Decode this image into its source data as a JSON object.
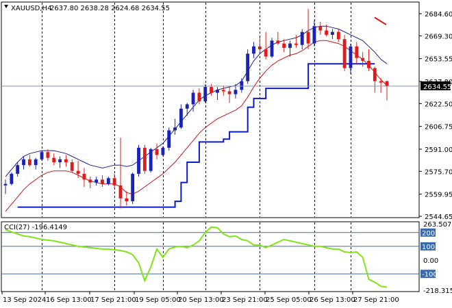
{
  "window": {
    "title": "XAUUSD,H4",
    "ohlc_text": "2637.80 2638.28 2624.68 2634.55",
    "indicator_title": "CCI(27) -196.4149",
    "current_price_tag": "2634.55"
  },
  "colors": {
    "bull": "#1a23b5",
    "bear": "#e01b1b",
    "upper_band": "#1a1a8c",
    "lower_band": "#cc1111",
    "trend_stop": "#0a1ac8",
    "cci_line": "#7fe614",
    "level_line": "#3c6aa8",
    "grid": "#000000"
  },
  "chart_data": [
    {
      "type": "candlestick",
      "title": "XAUUSD,H4",
      "ylim": [
        2544.65,
        2689.0
      ],
      "price_ticks": [
        "2684.60",
        "2669.30",
        "2653.55",
        "2637.80",
        "2622.50",
        "2606.75",
        "2591.00",
        "2575.70",
        "2559.95",
        "2544.65"
      ],
      "time_labels": [
        "13 Sep 2024",
        "16 Sep 13:00",
        "17 Sep 21:00",
        "19 Sep 05:00",
        "20 Sep 13:00",
        "23 Sep 21:00",
        "25 Sep 05:00",
        "26 Sep 13:00",
        "27 Sep 21:00"
      ],
      "candles": [
        {
          "o": 2566,
          "h": 2570,
          "l": 2560,
          "c": 2567
        },
        {
          "o": 2567,
          "h": 2575,
          "l": 2566,
          "c": 2574
        },
        {
          "o": 2574,
          "h": 2582,
          "l": 2572,
          "c": 2580
        },
        {
          "o": 2580,
          "h": 2586,
          "l": 2577,
          "c": 2584
        },
        {
          "o": 2584,
          "h": 2587,
          "l": 2579,
          "c": 2580
        },
        {
          "o": 2580,
          "h": 2585,
          "l": 2577,
          "c": 2584
        },
        {
          "o": 2584,
          "h": 2590,
          "l": 2583,
          "c": 2589
        },
        {
          "o": 2589,
          "h": 2591,
          "l": 2583,
          "c": 2585
        },
        {
          "o": 2585,
          "h": 2588,
          "l": 2580,
          "c": 2582
        },
        {
          "o": 2582,
          "h": 2586,
          "l": 2578,
          "c": 2584
        },
        {
          "o": 2584,
          "h": 2587,
          "l": 2579,
          "c": 2582
        },
        {
          "o": 2582,
          "h": 2584,
          "l": 2575,
          "c": 2576
        },
        {
          "o": 2576,
          "h": 2583,
          "l": 2571,
          "c": 2574
        },
        {
          "o": 2574,
          "h": 2578,
          "l": 2565,
          "c": 2570
        },
        {
          "o": 2570,
          "h": 2572,
          "l": 2564,
          "c": 2568
        },
        {
          "o": 2568,
          "h": 2572,
          "l": 2566,
          "c": 2570
        },
        {
          "o": 2570,
          "h": 2573,
          "l": 2565,
          "c": 2567
        },
        {
          "o": 2567,
          "h": 2572,
          "l": 2566,
          "c": 2571
        },
        {
          "o": 2571,
          "h": 2574,
          "l": 2564,
          "c": 2566
        },
        {
          "o": 2566,
          "h": 2599,
          "l": 2550,
          "c": 2557
        },
        {
          "o": 2557,
          "h": 2562,
          "l": 2552,
          "c": 2555
        },
        {
          "o": 2555,
          "h": 2575,
          "l": 2553,
          "c": 2574
        },
        {
          "o": 2574,
          "h": 2594,
          "l": 2572,
          "c": 2592
        },
        {
          "o": 2592,
          "h": 2594,
          "l": 2574,
          "c": 2576
        },
        {
          "o": 2576,
          "h": 2592,
          "l": 2575,
          "c": 2591
        },
        {
          "o": 2591,
          "h": 2595,
          "l": 2584,
          "c": 2587
        },
        {
          "o": 2587,
          "h": 2593,
          "l": 2586,
          "c": 2592
        },
        {
          "o": 2592,
          "h": 2606,
          "l": 2590,
          "c": 2604
        },
        {
          "o": 2604,
          "h": 2612,
          "l": 2601,
          "c": 2606
        },
        {
          "o": 2606,
          "h": 2622,
          "l": 2605,
          "c": 2619
        },
        {
          "o": 2619,
          "h": 2623,
          "l": 2614,
          "c": 2622
        },
        {
          "o": 2622,
          "h": 2632,
          "l": 2617,
          "c": 2630
        },
        {
          "o": 2630,
          "h": 2633,
          "l": 2622,
          "c": 2624
        },
        {
          "o": 2624,
          "h": 2636,
          "l": 2623,
          "c": 2634
        },
        {
          "o": 2634,
          "h": 2636,
          "l": 2628,
          "c": 2630
        },
        {
          "o": 2630,
          "h": 2634,
          "l": 2625,
          "c": 2632
        },
        {
          "o": 2632,
          "h": 2635,
          "l": 2628,
          "c": 2631
        },
        {
          "o": 2631,
          "h": 2634,
          "l": 2623,
          "c": 2629
        },
        {
          "o": 2629,
          "h": 2636,
          "l": 2626,
          "c": 2632
        },
        {
          "o": 2632,
          "h": 2640,
          "l": 2630,
          "c": 2638
        },
        {
          "o": 2638,
          "h": 2660,
          "l": 2636,
          "c": 2657
        },
        {
          "o": 2657,
          "h": 2665,
          "l": 2654,
          "c": 2662
        },
        {
          "o": 2662,
          "h": 2668,
          "l": 2658,
          "c": 2660
        },
        {
          "o": 2660,
          "h": 2672,
          "l": 2653,
          "c": 2655
        },
        {
          "o": 2655,
          "h": 2668,
          "l": 2654,
          "c": 2666
        },
        {
          "o": 2666,
          "h": 2672,
          "l": 2663,
          "c": 2664
        },
        {
          "o": 2664,
          "h": 2667,
          "l": 2658,
          "c": 2661
        },
        {
          "o": 2661,
          "h": 2666,
          "l": 2655,
          "c": 2664
        },
        {
          "o": 2664,
          "h": 2670,
          "l": 2661,
          "c": 2663
        },
        {
          "o": 2663,
          "h": 2674,
          "l": 2660,
          "c": 2672
        },
        {
          "o": 2672,
          "h": 2688,
          "l": 2660,
          "c": 2664
        },
        {
          "o": 2664,
          "h": 2680,
          "l": 2662,
          "c": 2676
        },
        {
          "o": 2676,
          "h": 2679,
          "l": 2670,
          "c": 2673
        },
        {
          "o": 2673,
          "h": 2677,
          "l": 2669,
          "c": 2670
        },
        {
          "o": 2670,
          "h": 2674,
          "l": 2667,
          "c": 2672
        },
        {
          "o": 2672,
          "h": 2674,
          "l": 2665,
          "c": 2667
        },
        {
          "o": 2667,
          "h": 2670,
          "l": 2645,
          "c": 2647
        },
        {
          "o": 2647,
          "h": 2664,
          "l": 2643,
          "c": 2662
        },
        {
          "o": 2662,
          "h": 2665,
          "l": 2650,
          "c": 2654
        },
        {
          "o": 2654,
          "h": 2658,
          "l": 2648,
          "c": 2652
        },
        {
          "o": 2652,
          "h": 2660,
          "l": 2645,
          "c": 2647
        },
        {
          "o": 2647,
          "h": 2648,
          "l": 2630,
          "c": 2638
        },
        {
          "o": 2638,
          "h": 2640,
          "l": 2630,
          "c": 2637
        },
        {
          "o": 2638,
          "h": 2638.28,
          "l": 2624.68,
          "c": 2634.55
        }
      ],
      "upper_band": [
        2572,
        2577,
        2582,
        2586,
        2588,
        2589,
        2590,
        2590,
        2590,
        2589,
        2588,
        2586,
        2584,
        2582,
        2580,
        2579,
        2578,
        2579,
        2580,
        2580,
        2579,
        2580,
        2583,
        2586,
        2589,
        2592,
        2595,
        2600,
        2605,
        2610,
        2615,
        2620,
        2625,
        2628,
        2630,
        2632,
        2633,
        2634,
        2635,
        2638,
        2645,
        2652,
        2657,
        2660,
        2663,
        2665,
        2666,
        2667,
        2668,
        2670,
        2673,
        2675,
        2676,
        2676,
        2675,
        2674,
        2672,
        2670,
        2668,
        2666,
        2662,
        2658,
        2653,
        2650
      ],
      "lower_band": [
        2548,
        2553,
        2558,
        2563,
        2567,
        2570,
        2573,
        2575,
        2576,
        2576,
        2576,
        2575,
        2573,
        2571,
        2569,
        2568,
        2567,
        2567,
        2567,
        2565,
        2561,
        2560,
        2562,
        2565,
        2568,
        2571,
        2574,
        2578,
        2582,
        2587,
        2592,
        2597,
        2602,
        2606,
        2609,
        2612,
        2614,
        2616,
        2618,
        2621,
        2627,
        2634,
        2640,
        2645,
        2649,
        2652,
        2654,
        2656,
        2657,
        2659,
        2662,
        2665,
        2666,
        2666,
        2665,
        2664,
        2662,
        2659,
        2656,
        2653,
        2649,
        2644,
        2639,
        2635
      ],
      "trend_stop": [
        null,
        null,
        2551,
        2551,
        2551,
        2551,
        2551,
        2551,
        2551,
        2551,
        2551,
        2551,
        2551,
        2551,
        2551,
        2551,
        2551,
        2551,
        2551,
        2551,
        2551,
        2551,
        2551,
        2551,
        2551,
        2551,
        2551,
        2551,
        2555,
        2568,
        2582,
        2582,
        2596,
        2596,
        2596,
        2596,
        2598,
        2603,
        2603,
        2603,
        2620,
        2626,
        2626,
        2633,
        2633,
        2633,
        2633,
        2633,
        2633,
        2633,
        2650,
        2650,
        2650,
        2650,
        2650,
        2650,
        2650,
        2650,
        2650,
        2650,
        2650,
        2650,
        null,
        null
      ],
      "arrow": {
        "y_start": 2682,
        "y_end": 2677
      }
    },
    {
      "type": "line",
      "title": "CCI(27) -196.4149",
      "ylim": [
        -218.3159,
        263.5072
      ],
      "level_ticks": [
        "263.5072",
        "200",
        "100",
        "0.00",
        "-100",
        "-218.3159"
      ],
      "levels": [
        200,
        100,
        -100
      ],
      "series": [
        {
          "values": [
            220,
            205,
            190,
            175,
            170,
            160,
            150,
            145,
            140,
            130,
            120,
            110,
            100,
            95,
            90,
            85,
            80,
            80,
            75,
            70,
            60,
            40,
            -20,
            -150,
            -50,
            80,
            20,
            80,
            95,
            100,
            90,
            110,
            140,
            200,
            240,
            235,
            190,
            170,
            175,
            150,
            140,
            110,
            110,
            90,
            110,
            130,
            150,
            140,
            130,
            120,
            110,
            100,
            100,
            90,
            80,
            80,
            60,
            55,
            60,
            20,
            -140,
            -160,
            -190,
            -196.4149
          ]
        }
      ]
    }
  ]
}
